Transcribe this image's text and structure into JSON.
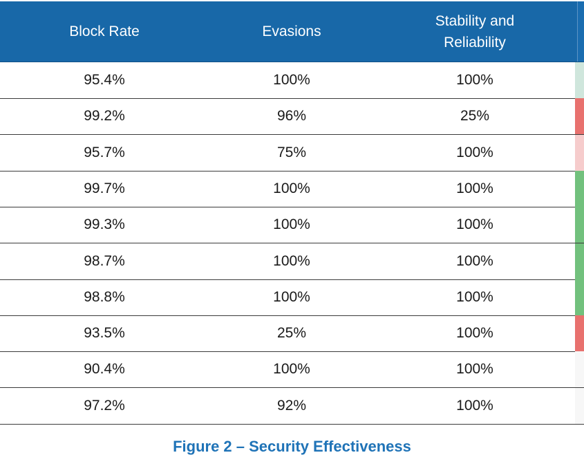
{
  "table": {
    "headers": [
      "Block Rate",
      "Evasions",
      "Stability and\nReliability"
    ],
    "rows": [
      {
        "block_rate": "95.4%",
        "evasions": "100%",
        "stability": "100%",
        "indicator_color": "#cfe6dc"
      },
      {
        "block_rate": "99.2%",
        "evasions": "96%",
        "stability": "25%",
        "indicator_color": "#e8716e"
      },
      {
        "block_rate": "95.7%",
        "evasions": "75%",
        "stability": "100%",
        "indicator_color": "#f6cccc"
      },
      {
        "block_rate": "99.7%",
        "evasions": "100%",
        "stability": "100%",
        "indicator_color": "#72c17d"
      },
      {
        "block_rate": "99.3%",
        "evasions": "100%",
        "stability": "100%",
        "indicator_color": "#72c17d"
      },
      {
        "block_rate": "98.7%",
        "evasions": "100%",
        "stability": "100%",
        "indicator_color": "#72c17d"
      },
      {
        "block_rate": "98.8%",
        "evasions": "100%",
        "stability": "100%",
        "indicator_color": "#72c17d"
      },
      {
        "block_rate": "93.5%",
        "evasions": "25%",
        "stability": "100%",
        "indicator_color": "#e8716e"
      },
      {
        "block_rate": "90.4%",
        "evasions": "100%",
        "stability": "100%",
        "indicator_color": "#f7f7f7"
      },
      {
        "block_rate": "97.2%",
        "evasions": "92%",
        "stability": "100%",
        "indicator_color": "#f7f7f7"
      }
    ]
  },
  "caption": "Figure 2 – Security Effectiveness",
  "colors": {
    "header_bg": "#1868a8",
    "caption": "#1f73b7"
  }
}
